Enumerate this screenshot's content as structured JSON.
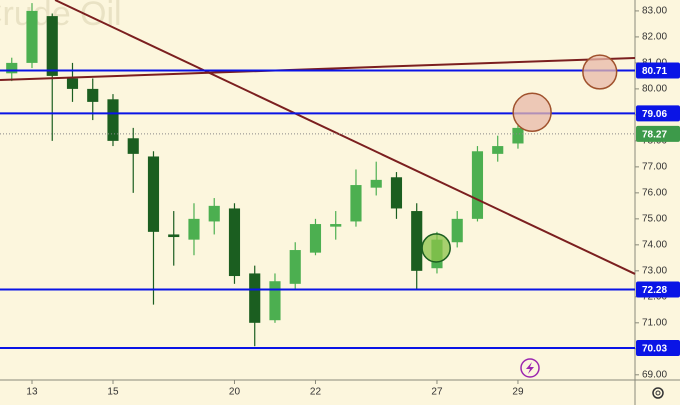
{
  "chart_data": {
    "type": "candlestick",
    "title": "Crude Oil",
    "x": [
      -0.5,
      0,
      0.5,
      1,
      1.5,
      2,
      2.5,
      3,
      3.5,
      4,
      4.5,
      5,
      5.5,
      6,
      6.5,
      7,
      7.5,
      8,
      8.5,
      9,
      9.5,
      10,
      10.5,
      11,
      11.5,
      12
    ],
    "open": [
      80.6,
      81.0,
      82.8,
      80.4,
      80.0,
      79.6,
      78.1,
      77.4,
      74.4,
      74.2,
      74.9,
      75.4,
      72.9,
      71.1,
      72.5,
      73.7,
      74.7,
      74.9,
      76.2,
      76.6,
      75.3,
      73.1,
      74.1,
      75.0,
      77.5,
      77.9
    ],
    "high": [
      81.2,
      83.3,
      82.9,
      81.0,
      80.4,
      79.8,
      78.5,
      77.6,
      75.3,
      75.6,
      75.8,
      75.6,
      73.2,
      72.9,
      74.1,
      75.0,
      75.3,
      76.9,
      77.2,
      76.8,
      75.6,
      74.5,
      75.3,
      77.8,
      78.2,
      78.6
    ],
    "low": [
      80.3,
      80.8,
      78.0,
      79.5,
      78.8,
      77.8,
      76.0,
      71.7,
      73.2,
      73.6,
      74.4,
      72.5,
      70.1,
      71.0,
      72.3,
      73.6,
      74.2,
      74.7,
      75.9,
      75.0,
      72.3,
      72.9,
      73.9,
      74.9,
      77.2,
      77.7
    ],
    "close": [
      81.0,
      83.0,
      80.5,
      80.0,
      79.5,
      78.0,
      77.5,
      74.5,
      74.3,
      75.0,
      75.5,
      72.8,
      71.0,
      72.6,
      73.8,
      74.8,
      74.8,
      76.3,
      76.5,
      75.4,
      73.0,
      74.2,
      75.0,
      77.6,
      77.8,
      78.5
    ],
    "up_color": "#4caf50",
    "down_color": "#1b5e20",
    "xlim": [
      -0.79,
      14.89
    ],
    "ylim": [
      68.8,
      83.42
    ],
    "xticks": [
      {
        "value": 0,
        "label": "13"
      },
      {
        "value": 2,
        "label": "15"
      },
      {
        "value": 5,
        "label": "20"
      },
      {
        "value": 7,
        "label": "22"
      },
      {
        "value": 10,
        "label": "27"
      },
      {
        "value": 12,
        "label": "29"
      }
    ],
    "yticks": [
      {
        "value": 69,
        "label": "69.00"
      },
      {
        "value": 70,
        "label": "70.00"
      },
      {
        "value": 71,
        "label": "71.00"
      },
      {
        "value": 72,
        "label": "72.00"
      },
      {
        "value": 73,
        "label": "73.00"
      },
      {
        "value": 74,
        "label": "74.00"
      },
      {
        "value": 75,
        "label": "75.00"
      },
      {
        "value": 76,
        "label": "76.00"
      },
      {
        "value": 77,
        "label": "77.00"
      },
      {
        "value": 78,
        "label": "78.00"
      },
      {
        "value": 79,
        "label": "79.00"
      },
      {
        "value": 80,
        "label": "80.00"
      },
      {
        "value": 81,
        "label": "81.00"
      },
      {
        "value": 82,
        "label": "82.00"
      },
      {
        "value": 83,
        "label": "83.00"
      }
    ],
    "levels": [
      {
        "value": 80.71,
        "color": "#0a14e6"
      },
      {
        "value": 79.06,
        "color": "#0a14e6"
      },
      {
        "value": 72.28,
        "color": "#0a14e6"
      },
      {
        "value": 70.03,
        "color": "#0a14e6"
      }
    ],
    "last_price": {
      "value": 78.27,
      "color": "#3d9a4a"
    },
    "trendlines": [
      {
        "x": [
          -0.79,
          14.89
        ],
        "y": [
          80.34,
          81.19
        ],
        "color": "#7b1f1f"
      },
      {
        "x": [
          0.57,
          14.89
        ],
        "y": [
          83.42,
          72.88
        ],
        "color": "#7b1f1f"
      }
    ],
    "markers": [
      {
        "x": 14.02,
        "y": 80.65,
        "radius": 0.65,
        "color": "#e8b8a8",
        "stroke": "#a0522d"
      },
      {
        "x": 12.35,
        "y": 79.1,
        "radius": 0.73,
        "color": "#e8b8a8",
        "stroke": "#a0522d"
      },
      {
        "x": 9.98,
        "y": 73.88,
        "radius": 0.54,
        "color": "#8bc34a",
        "stroke": "#1b5e20"
      }
    ]
  }
}
